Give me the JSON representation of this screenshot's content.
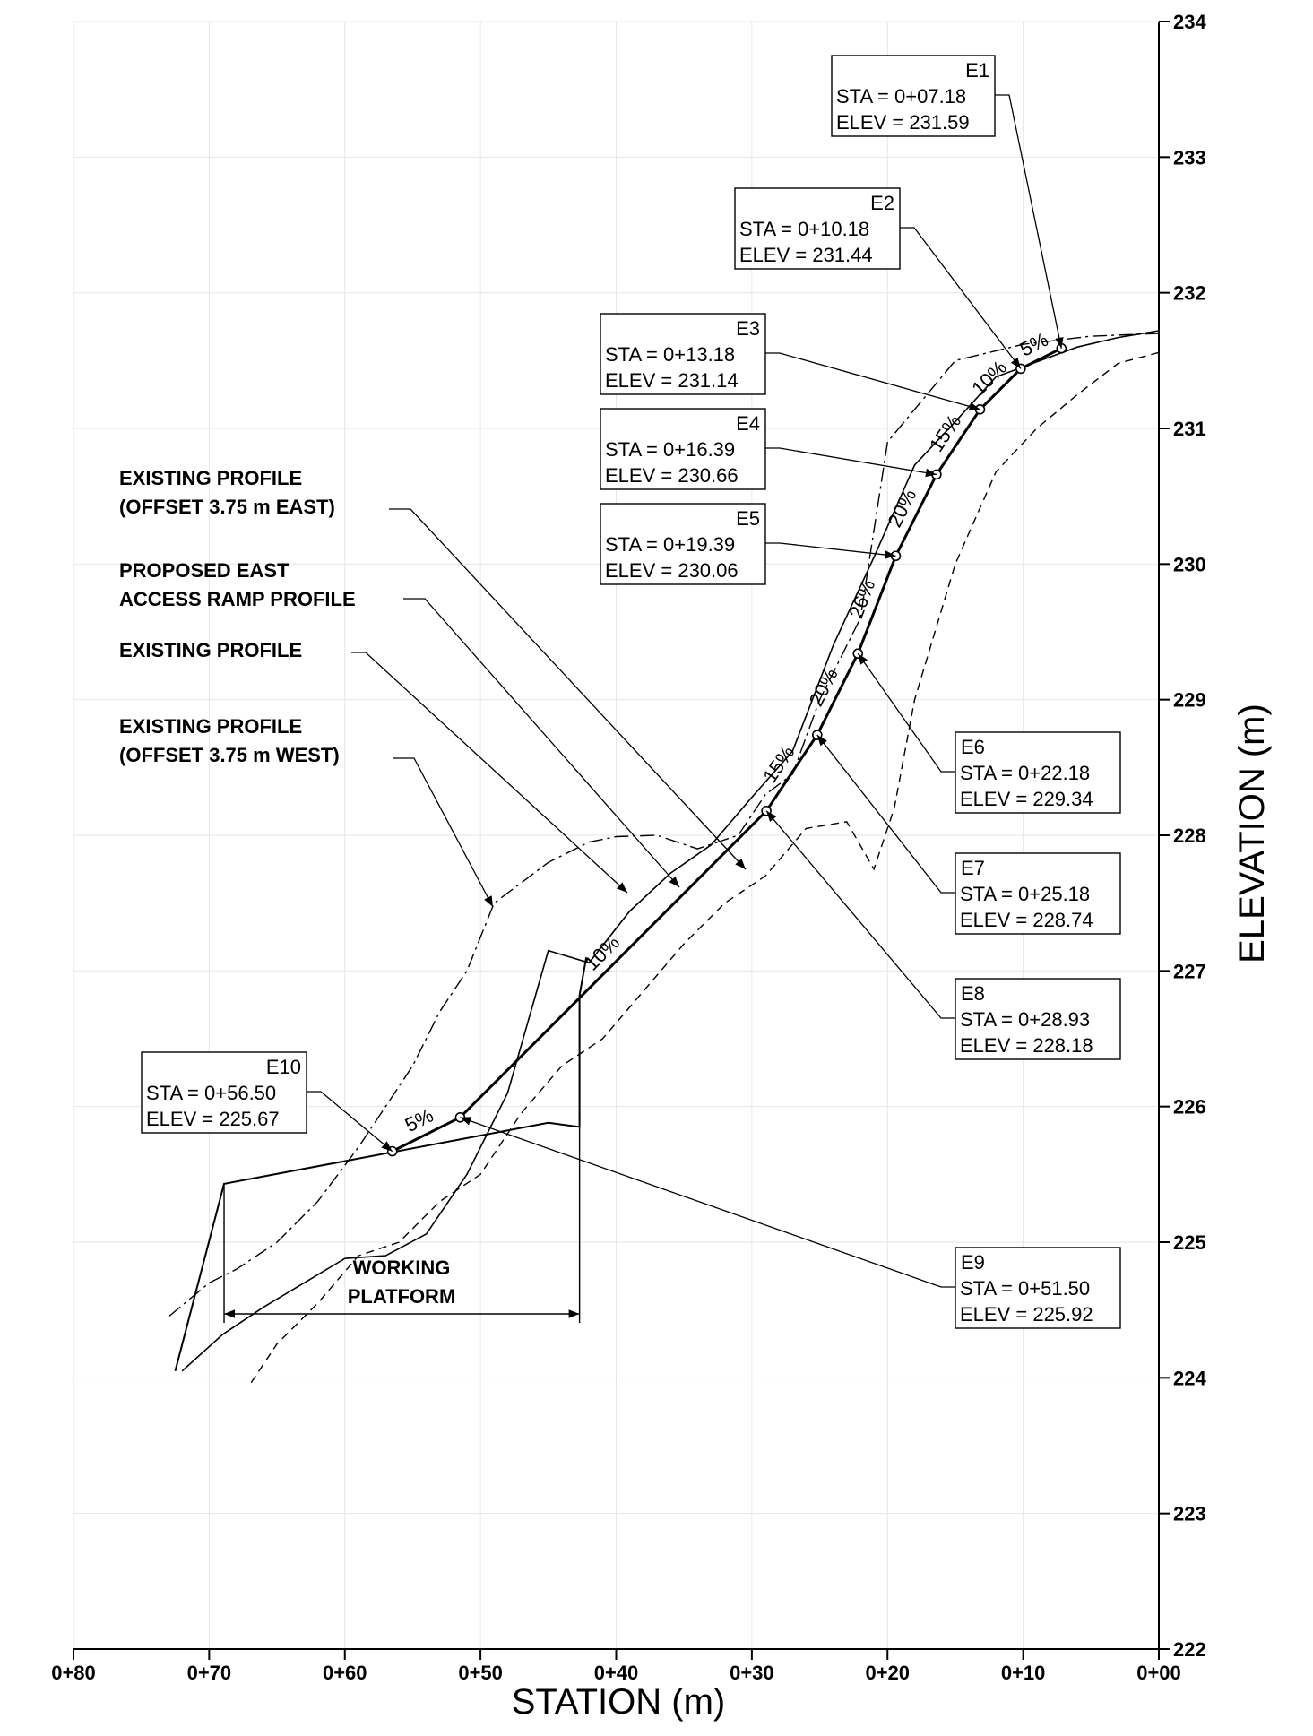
{
  "chart_data": {
    "type": "line",
    "xlabel": "STATION (m)",
    "ylabel": "ELEVATION (m)",
    "x_axis_reversed": true,
    "xlim": [
      0,
      80
    ],
    "ylim": [
      222,
      234
    ],
    "grid": true,
    "x_ticks": [
      {
        "v": 80,
        "label": "0+80"
      },
      {
        "v": 70,
        "label": "0+70"
      },
      {
        "v": 60,
        "label": "0+60"
      },
      {
        "v": 50,
        "label": "0+50"
      },
      {
        "v": 40,
        "label": "0+40"
      },
      {
        "v": 30,
        "label": "0+30"
      },
      {
        "v": 20,
        "label": "0+20"
      },
      {
        "v": 10,
        "label": "0+10"
      },
      {
        "v": 0,
        "label": "0+00"
      }
    ],
    "y_ticks": [
      {
        "v": 222,
        "label": "222"
      },
      {
        "v": 223,
        "label": "223"
      },
      {
        "v": 224,
        "label": "224"
      },
      {
        "v": 225,
        "label": "225"
      },
      {
        "v": 226,
        "label": "226"
      },
      {
        "v": 227,
        "label": "227"
      },
      {
        "v": 228,
        "label": "228"
      },
      {
        "v": 229,
        "label": "229"
      },
      {
        "v": 230,
        "label": "230"
      },
      {
        "v": 231,
        "label": "231"
      },
      {
        "v": 232,
        "label": "232"
      },
      {
        "v": 233,
        "label": "233"
      },
      {
        "v": 234,
        "label": "234"
      }
    ],
    "series": [
      {
        "key": "proposed",
        "style": "solid-heavy",
        "x": [
          7.18,
          10.18,
          13.18,
          16.39,
          19.39,
          22.18,
          25.18,
          28.93,
          51.5,
          56.5
        ],
        "y": [
          231.59,
          231.44,
          231.14,
          230.66,
          230.06,
          229.34,
          228.74,
          228.18,
          225.92,
          225.67
        ]
      },
      {
        "key": "existing",
        "style": "solid-thin",
        "x": [
          0,
          3,
          6,
          9,
          12,
          15,
          18,
          21,
          24,
          27,
          30,
          33,
          36,
          39,
          42,
          45,
          48,
          51,
          54,
          57,
          60,
          63,
          66,
          69,
          72
        ],
        "y": [
          231.72,
          231.67,
          231.6,
          231.49,
          231.38,
          231.05,
          230.73,
          230.05,
          229.4,
          228.62,
          228.28,
          227.93,
          227.72,
          227.44,
          227.06,
          227.15,
          226.1,
          225.5,
          225.06,
          224.9,
          224.88,
          224.7,
          224.52,
          224.32,
          224.05
        ]
      },
      {
        "key": "offset_east",
        "style": "dashed",
        "x": [
          0,
          3,
          6,
          9,
          12,
          15,
          18,
          19.5,
          21,
          23,
          26,
          29,
          32,
          35,
          38,
          41,
          44,
          47,
          50,
          53,
          56,
          59,
          62,
          65,
          67
        ],
        "y": [
          231.56,
          231.48,
          231.25,
          231.0,
          230.68,
          230.0,
          229.0,
          228.2,
          227.75,
          228.1,
          228.05,
          227.7,
          227.5,
          227.2,
          226.85,
          226.5,
          226.3,
          225.95,
          225.5,
          225.3,
          225.0,
          224.9,
          224.55,
          224.25,
          223.95
        ]
      },
      {
        "key": "offset_west",
        "style": "dash-dot",
        "x": [
          0,
          5,
          10,
          15,
          20,
          22,
          25,
          27,
          29,
          31,
          34,
          37,
          40,
          42,
          45,
          49,
          51,
          53,
          55,
          57,
          59,
          62,
          65,
          68,
          70,
          73
        ],
        "y": [
          231.7,
          231.68,
          231.62,
          231.5,
          230.9,
          229.6,
          229.0,
          228.45,
          228.3,
          228.0,
          227.9,
          228.0,
          227.99,
          227.95,
          227.8,
          227.5,
          227.0,
          226.7,
          226.3,
          226.0,
          225.7,
          225.3,
          225.0,
          224.8,
          224.7,
          224.45
        ]
      },
      {
        "key": "platform",
        "style": "solid",
        "x": [
          72.5,
          68.9,
          45.0,
          42.7,
          42.7,
          42.2
        ],
        "y": [
          224.05,
          225.43,
          225.88,
          225.85,
          226.82,
          227.1
        ]
      }
    ],
    "points": [
      {
        "id": "E1",
        "sta_label": "STA = 0+07.18",
        "elev_label": "ELEV = 231.59"
      },
      {
        "id": "E2",
        "sta_label": "STA = 0+10.18",
        "elev_label": "ELEV = 231.44"
      },
      {
        "id": "E3",
        "sta_label": "STA = 0+13.18",
        "elev_label": "ELEV = 231.14"
      },
      {
        "id": "E4",
        "sta_label": "STA = 0+16.39",
        "elev_label": "ELEV = 230.66"
      },
      {
        "id": "E5",
        "sta_label": "STA = 0+19.39",
        "elev_label": "ELEV = 230.06"
      },
      {
        "id": "E6",
        "sta_label": "STA = 0+22.18",
        "elev_label": "ELEV = 229.34"
      },
      {
        "id": "E7",
        "sta_label": "STA = 0+25.18",
        "elev_label": "ELEV = 228.74"
      },
      {
        "id": "E8",
        "sta_label": "STA = 0+28.93",
        "elev_label": "ELEV = 228.18"
      },
      {
        "id": "E9",
        "sta_label": "STA = 0+51.50",
        "elev_label": "ELEV = 225.92"
      },
      {
        "id": "E10",
        "sta_label": "STA = 0+56.50",
        "elev_label": "ELEV = 225.67"
      }
    ],
    "slopes": [
      "5%",
      "10%",
      "15%",
      "20%",
      "26%",
      "20%",
      "15%",
      "10%",
      "5%"
    ],
    "annotations": {
      "existing_east_line1": "EXISTING PROFILE",
      "existing_east_line2": "(OFFSET 3.75 m EAST)",
      "proposed_line1": "PROPOSED EAST",
      "proposed_line2": "ACCESS RAMP PROFILE",
      "existing_line1": "EXISTING PROFILE",
      "existing_west_line1": "EXISTING PROFILE",
      "existing_west_line2": "(OFFSET 3.75 m WEST)",
      "platform_line1": "WORKING",
      "platform_line2": "PLATFORM"
    }
  }
}
